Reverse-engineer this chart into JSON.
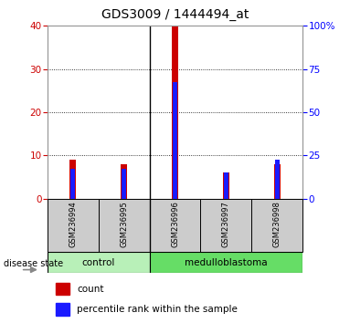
{
  "title": "GDS3009 / 1444494_at",
  "samples": [
    "GSM236994",
    "GSM236995",
    "GSM236996",
    "GSM236997",
    "GSM236998"
  ],
  "count_values": [
    9,
    8,
    40,
    6,
    8
  ],
  "percentile_values": [
    17.5,
    17.5,
    67.5,
    15,
    22.5
  ],
  "control_indices": [
    0,
    1
  ],
  "medulloblastoma_indices": [
    2,
    3,
    4
  ],
  "left_ylim": [
    0,
    40
  ],
  "right_ylim": [
    0,
    100
  ],
  "left_yticks": [
    0,
    10,
    20,
    30,
    40
  ],
  "right_yticks": [
    0,
    25,
    50,
    75,
    100
  ],
  "right_yticklabels": [
    "0",
    "25",
    "50",
    "75",
    "100%"
  ],
  "red_color": "#cc0000",
  "blue_color": "#1a1aff",
  "count_label": "count",
  "percentile_label": "percentile rank within the sample",
  "disease_state_label": "disease state",
  "title_fontsize": 10,
  "tick_fontsize": 7.5,
  "label_fontsize": 7.5,
  "control_color": "#b8f0b8",
  "medulloblastoma_color": "#66dd66",
  "sample_box_color": "#cccccc"
}
